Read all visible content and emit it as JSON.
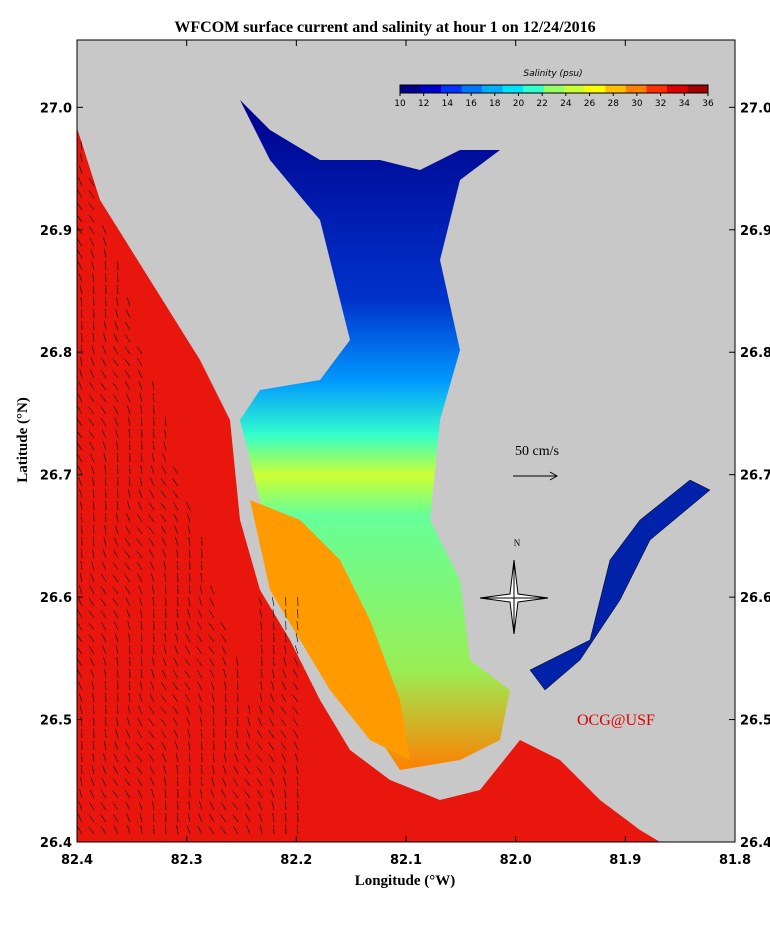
{
  "title": "WFCOM surface current and salinity at hour 1 on 12/24/2016",
  "x_axis": {
    "label": "Longitude (°W)",
    "lim": [
      82.4,
      81.8
    ],
    "ticks": [
      {
        "value": 82.4,
        "label": "82.4"
      },
      {
        "value": 82.3,
        "label": "82.3"
      },
      {
        "value": 82.2,
        "label": "82.2"
      },
      {
        "value": 82.1,
        "label": "82.1"
      },
      {
        "value": 82.0,
        "label": "82.0"
      },
      {
        "value": 81.9,
        "label": "81.9"
      },
      {
        "value": 81.8,
        "label": "81.8"
      }
    ]
  },
  "y_axis": {
    "label": "Latitude (°N)",
    "lim": [
      26.4,
      27.055
    ],
    "ticks": [
      {
        "value": 26.4,
        "label": "26.4"
      },
      {
        "value": 26.5,
        "label": "26.5"
      },
      {
        "value": 26.6,
        "label": "26.6"
      },
      {
        "value": 26.7,
        "label": "26.7"
      },
      {
        "value": 26.8,
        "label": "26.8"
      },
      {
        "value": 26.9,
        "label": "26.9"
      },
      {
        "value": 27.0,
        "label": "27.0"
      }
    ]
  },
  "colorbar": {
    "label": "Salinity (psu)",
    "lim": [
      10,
      36
    ],
    "ticks": [
      10,
      12,
      14,
      16,
      18,
      20,
      22,
      24,
      26,
      28,
      30,
      32,
      34,
      36
    ],
    "colors": [
      "#00008b",
      "#0000cd",
      "#0033ff",
      "#0077ff",
      "#00b0ff",
      "#00e5ff",
      "#33ffcc",
      "#99ff66",
      "#ccff33",
      "#ffff00",
      "#ffc000",
      "#ff8000",
      "#ff3000",
      "#e00000",
      "#a00000"
    ]
  },
  "scale_label": "50 cm/s",
  "compass_label": "N",
  "credit": "OCG@USF"
}
